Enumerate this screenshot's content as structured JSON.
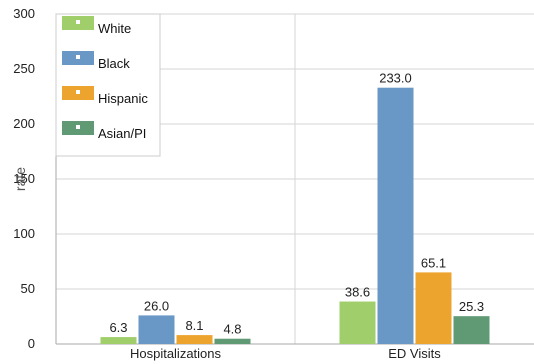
{
  "chart_data": {
    "type": "bar",
    "title": "",
    "xlabel": "",
    "ylabel": "rate",
    "ylim": [
      0,
      300
    ],
    "yticks": [
      0,
      50,
      100,
      150,
      200,
      250,
      300
    ],
    "grid": true,
    "legend_position": "top-left",
    "categories": [
      "Hospitalizations",
      "ED Visits"
    ],
    "series": [
      {
        "name": "White",
        "color": "#9fce6b",
        "values": [
          6.3,
          38.6
        ],
        "labels": [
          "6.3",
          "38.6"
        ]
      },
      {
        "name": "Black",
        "color": "#6a98c6",
        "values": [
          26.0,
          233.0
        ],
        "labels": [
          "26.0",
          "233.0"
        ]
      },
      {
        "name": "Hispanic",
        "color": "#eda42f",
        "values": [
          8.1,
          65.1
        ],
        "labels": [
          "8.1",
          "65.1"
        ]
      },
      {
        "name": "Asian/PI",
        "color": "#5f9a74",
        "values": [
          4.8,
          25.3
        ],
        "labels": [
          "4.8",
          "25.3"
        ]
      }
    ]
  }
}
